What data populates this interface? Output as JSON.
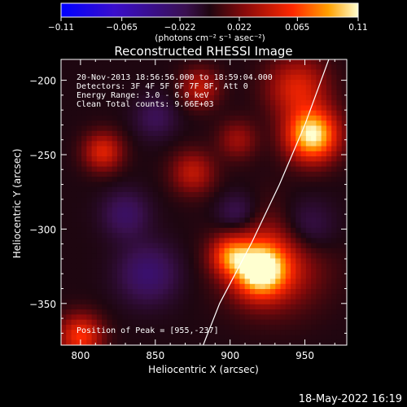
{
  "chart_data": {
    "type": "heatmap",
    "title": "Reconstructed RHESSI Image",
    "xlabel": "Heliocentric X (arcsec)",
    "ylabel": "Heliocentric Y (arcsec)",
    "xlim": [
      787,
      978
    ],
    "ylim": [
      -378,
      -186
    ],
    "x_ticks": [
      800,
      850,
      900,
      950
    ],
    "y_ticks": [
      -200,
      -250,
      -300,
      -350
    ],
    "x_tick_labels": [
      "800",
      "850",
      "900",
      "950"
    ],
    "y_tick_labels": [
      "−200",
      "−250",
      "−300",
      "−350"
    ],
    "colorbar": {
      "min": -0.11,
      "max": 0.11,
      "ticks": [
        -0.11,
        -0.065,
        -0.022,
        0.022,
        0.065,
        0.11
      ],
      "tick_labels": [
        "−0.11",
        "−0.065",
        "−0.022",
        "0.022",
        "0.065",
        "0.11"
      ],
      "units": "(photons cm⁻² s⁻¹ asec⁻²)"
    },
    "annotations": [
      "20-Nov-2013 18:56:56.000 to 18:59:04.000",
      "Detectors: 3F 4F 5F 6F 7F 8F, Att 0",
      "Energy Range: 3.0 - 6.0 keV",
      "Clean     Total counts: 9.66E+03"
    ],
    "peak_label": "Position of Peak = [955,-237]",
    "peak": {
      "x": 955,
      "y": -237
    },
    "sources": [
      {
        "x": 955,
        "y": -237,
        "amp": 0.11,
        "sigma": 12
      },
      {
        "x": 920,
        "y": -328,
        "amp": 0.1,
        "sigma": 12
      },
      {
        "x": 900,
        "y": -318,
        "amp": 0.06,
        "sigma": 9
      },
      {
        "x": 945,
        "y": -205,
        "amp": 0.05,
        "sigma": 14
      },
      {
        "x": 930,
        "y": -320,
        "amp": 0.05,
        "sigma": 22
      },
      {
        "x": 815,
        "y": -248,
        "amp": 0.05,
        "sigma": 9
      },
      {
        "x": 875,
        "y": -262,
        "amp": 0.04,
        "sigma": 10
      },
      {
        "x": 800,
        "y": -372,
        "amp": 0.06,
        "sigma": 10
      },
      {
        "x": 880,
        "y": -205,
        "amp": 0.04,
        "sigma": 9
      },
      {
        "x": 905,
        "y": -240,
        "amp": 0.03,
        "sigma": 9
      },
      {
        "x": 950,
        "y": -300,
        "amp": -0.03,
        "sigma": 14
      },
      {
        "x": 845,
        "y": -330,
        "amp": -0.03,
        "sigma": 14
      },
      {
        "x": 830,
        "y": -290,
        "amp": -0.025,
        "sigma": 11
      },
      {
        "x": 905,
        "y": -290,
        "amp": -0.025,
        "sigma": 10
      },
      {
        "x": 850,
        "y": -225,
        "amp": -0.02,
        "sigma": 10
      }
    ],
    "limb": [
      {
        "x": 966,
        "y": -186
      },
      {
        "x": 950,
        "y": -230
      },
      {
        "x": 933,
        "y": -270
      },
      {
        "x": 914,
        "y": -310
      },
      {
        "x": 893,
        "y": -350
      },
      {
        "x": 882,
        "y": -378
      }
    ]
  },
  "footer": {
    "timestamp": "18-May-2022 16:19"
  }
}
